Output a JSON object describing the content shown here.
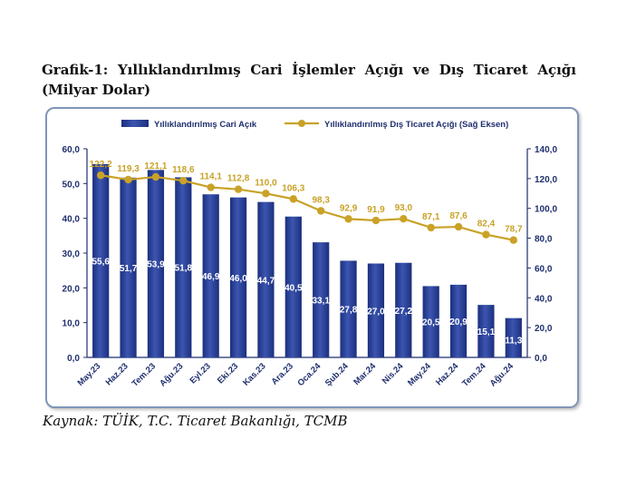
{
  "title": "Grafik-1: Yıllıklandırılmış Cari İşlemler Açığı ve Dış Ticaret Açığı (Milyar Dolar)",
  "source": "Kaynak: TÜİK, T.C. Ticaret Bakanlığı, TCMB",
  "colors": {
    "bar": "#1b2f7e",
    "bar_light": "#3c55b0",
    "line": "#c9a227",
    "axis": "#1f2f6e",
    "line_label": "#c9a227"
  },
  "chart_data": {
    "type": "bar",
    "categories": [
      "May.23",
      "Haz.23",
      "Tem.23",
      "Ağu.23",
      "Eyl.23",
      "Eki.23",
      "Kas.23",
      "Ara.23",
      "Oca.24",
      "Şub.24",
      "Mar.24",
      "Nis.24",
      "May.24",
      "Haz.24",
      "Tem.24",
      "Ağu.24"
    ],
    "series": [
      {
        "name": "Yıllıklandırılmış Cari Açık",
        "type": "bar",
        "axis": "left",
        "values": [
          55.6,
          51.7,
          53.9,
          51.8,
          46.9,
          46.0,
          44.7,
          40.5,
          33.1,
          27.8,
          27.0,
          27.2,
          20.5,
          20.9,
          15.1,
          11.3
        ],
        "labels": [
          "55,6",
          "51,7",
          "53,9",
          "51,8",
          "46,9",
          "46,0",
          "44,7",
          "40,5",
          "33,1",
          "27,8",
          "27,0",
          "27,2",
          "20,5",
          "20,9",
          "15,1",
          "11,3"
        ]
      },
      {
        "name": "Yıllıklandırılmış Dış Ticaret Açığı (Sağ Eksen)",
        "type": "line",
        "axis": "right",
        "values": [
          122.2,
          119.3,
          121.1,
          118.6,
          114.1,
          112.8,
          110.0,
          106.3,
          98.3,
          92.9,
          91.9,
          93.0,
          87.1,
          87.6,
          82.4,
          78.7
        ],
        "labels": [
          "122,2",
          "119,3",
          "121,1",
          "118,6",
          "114,1",
          "112,8",
          "110,0",
          "106,3",
          "98,3",
          "92,9",
          "91,9",
          "93,0",
          "87,1",
          "87,6",
          "82,4",
          "78,7"
        ]
      }
    ],
    "y_left": {
      "range": [
        0,
        60
      ],
      "ticks": [
        "0,0",
        "10,0",
        "20,0",
        "30,0",
        "40,0",
        "50,0",
        "60,0"
      ]
    },
    "y_right": {
      "range": [
        0,
        140
      ],
      "ticks": [
        "0,0",
        "20,0",
        "40,0",
        "60,0",
        "80,0",
        "100,0",
        "120,0",
        "140,0"
      ]
    },
    "legend_position": "top",
    "grid": false
  }
}
